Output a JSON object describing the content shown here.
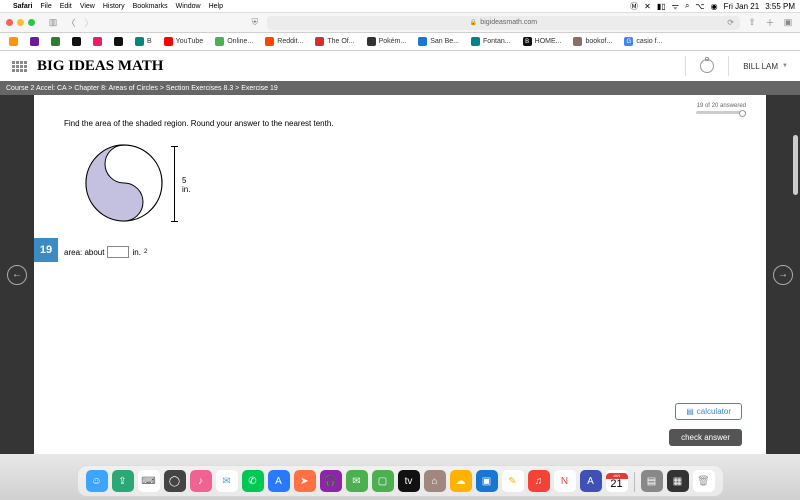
{
  "mac_menu": {
    "app": "Safari",
    "items": [
      "File",
      "Edit",
      "View",
      "History",
      "Bookmarks",
      "Window",
      "Help"
    ],
    "date": "Fri Jan 21",
    "time": "3:55 PM"
  },
  "browser": {
    "url_display": "bigideasmath.com",
    "traffic_colors": [
      "#ff5f57",
      "#febc2e",
      "#28c840"
    ]
  },
  "bookmarks": [
    {
      "label": "",
      "color": "#ff9500"
    },
    {
      "label": "",
      "color": "#6a1b9a"
    },
    {
      "label": "",
      "color": "#2e7d32"
    },
    {
      "label": "",
      "color": "#111"
    },
    {
      "label": "",
      "color": "#e91e63"
    },
    {
      "label": "",
      "color": "#111"
    },
    {
      "label": "B",
      "color": "#00897b"
    },
    {
      "label": "YouTube",
      "color": "#ff0000"
    },
    {
      "label": "Online...",
      "color": "#4caf50"
    },
    {
      "label": "Reddit...",
      "color": "#ff4500"
    },
    {
      "label": "The Of...",
      "color": "#d32f2f"
    },
    {
      "label": "Pokém...",
      "color": "#333"
    },
    {
      "label": "San Be...",
      "color": "#1976d2"
    },
    {
      "label": "Fontan...",
      "color": "#00838f"
    },
    {
      "label": "HOME...",
      "color": "#111",
      "prefix": "B"
    },
    {
      "label": "bookof...",
      "color": "#8d6e63"
    },
    {
      "label": "casio f...",
      "color": "#4285f4",
      "prefix": "G"
    }
  ],
  "page": {
    "brand": "BIG IDEAS MATH",
    "user": "BILL LAM",
    "breadcrumb": "Course 2 Accel: CA > Chapter 8: Areas of Circles > Section Exercises 8.3 > Exercise 19",
    "progress_text": "19 of 20 answered",
    "question_text": "Find the area of the shaded region. Round your answer to the nearest tenth.",
    "figure": {
      "diameter_label": "5 in.",
      "outer_stroke": "#000000",
      "shaded_fill": "#c4c1e0",
      "shaded_stroke": "#000000",
      "background": "#ffffff"
    },
    "question_number": "19",
    "answer_prefix": "area: about",
    "answer_unit": "in.",
    "answer_exponent": "2",
    "calculator_label": "calculator",
    "check_label": "check answer"
  },
  "dock": {
    "calendar_month": "JAN",
    "calendar_day": "21",
    "apps": [
      {
        "color": "#3da5ff",
        "glyph": "☺"
      },
      {
        "color": "#2aa876",
        "glyph": "⇪"
      },
      {
        "color": "#ffffff",
        "glyph": "⌨",
        "fg": "#555"
      },
      {
        "color": "#444444",
        "glyph": "◯"
      },
      {
        "color": "#f06292",
        "glyph": "♪"
      },
      {
        "color": "#ffffff",
        "glyph": "✉",
        "fg": "#3da5ff"
      },
      {
        "color": "#00c853",
        "glyph": "✆"
      },
      {
        "color": "#2979ff",
        "glyph": "A"
      },
      {
        "color": "#ff7043",
        "glyph": "➤"
      },
      {
        "color": "#8e24aa",
        "glyph": "🎧"
      },
      {
        "color": "#4caf50",
        "glyph": "✉"
      },
      {
        "color": "#4caf50",
        "glyph": "▢"
      },
      {
        "color": "#111111",
        "glyph": "tv"
      },
      {
        "color": "#a1887f",
        "glyph": "⌂"
      },
      {
        "color": "#ffb300",
        "glyph": "☁"
      },
      {
        "color": "#1976d2",
        "glyph": "▣"
      },
      {
        "color": "#ffffff",
        "glyph": "✎",
        "fg": "#ffb300"
      },
      {
        "color": "#f44336",
        "glyph": "♫"
      },
      {
        "color": "#ffffff",
        "glyph": "N",
        "fg": "#f44336"
      },
      {
        "color": "#3f51b5",
        "glyph": "A"
      }
    ],
    "right_apps": [
      {
        "color": "#888888",
        "glyph": "▤"
      },
      {
        "color": "#333333",
        "glyph": "▦"
      },
      {
        "color": "#ffffff",
        "glyph": "🗑",
        "fg": "#999"
      }
    ]
  }
}
